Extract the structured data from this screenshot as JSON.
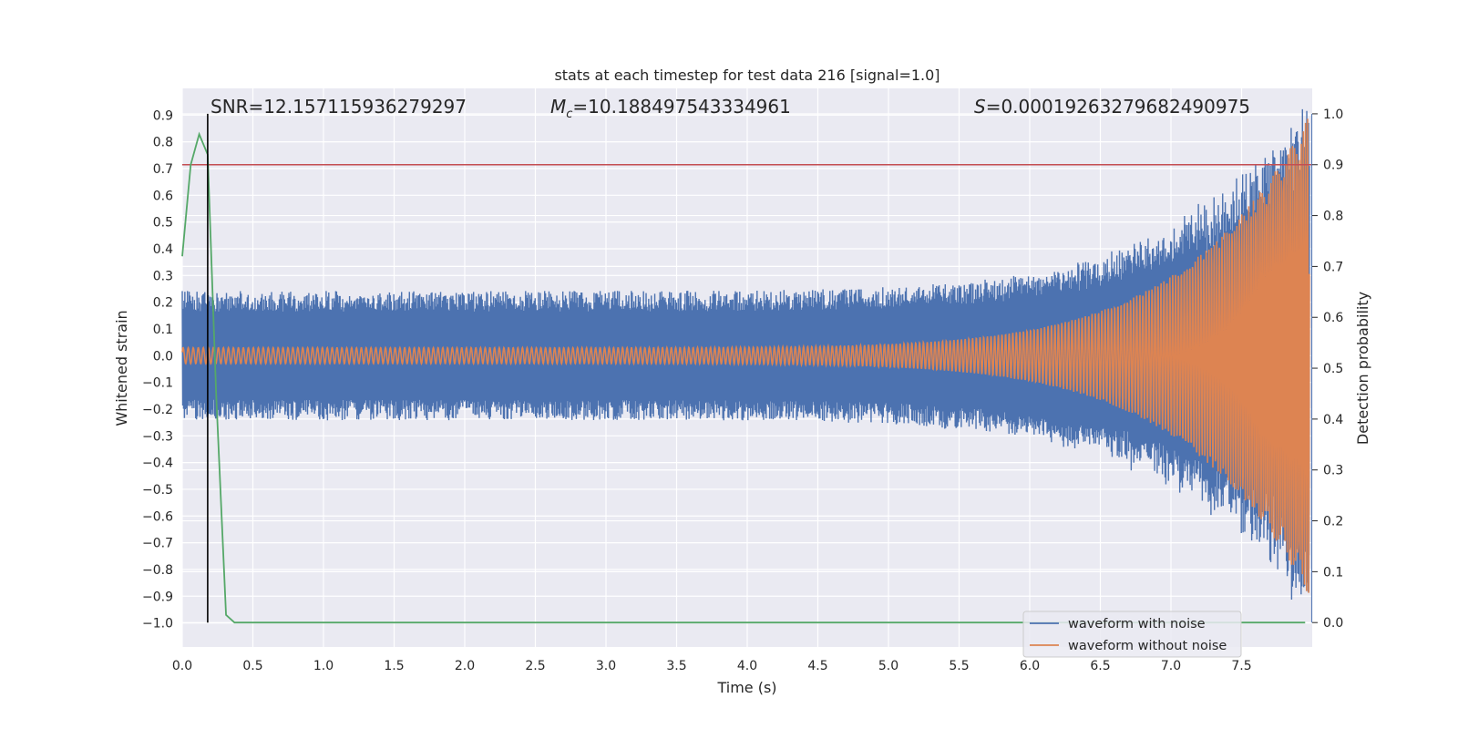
{
  "chart_data": {
    "type": "line",
    "title": "stats at each timestep for test data 216 [signal=1.0]",
    "xlabel": "Time (s)",
    "ylabel": "Whitened strain",
    "y2label": "Detection probability",
    "xlim": [
      0.0,
      8.0
    ],
    "ylim": [
      -1.09,
      1.0
    ],
    "y2lim": [
      -0.048,
      1.05
    ],
    "x_ticks": [
      "0.0",
      "0.5",
      "1.0",
      "1.5",
      "2.0",
      "2.5",
      "3.0",
      "3.5",
      "4.0",
      "4.5",
      "5.0",
      "5.5",
      "6.0",
      "6.5",
      "7.0",
      "7.5"
    ],
    "x_tick_values": [
      0.0,
      0.5,
      1.0,
      1.5,
      2.0,
      2.5,
      3.0,
      3.5,
      4.0,
      4.5,
      5.0,
      5.5,
      6.0,
      6.5,
      7.0,
      7.5
    ],
    "y_ticks": [
      "0.9",
      "0.8",
      "0.7",
      "0.6",
      "0.5",
      "0.4",
      "0.3",
      "0.2",
      "0.1",
      "0.0",
      "−0.1",
      "−0.2",
      "−0.3",
      "−0.4",
      "−0.5",
      "−0.6",
      "−0.7",
      "−0.8",
      "−0.9",
      "−1.0"
    ],
    "y_tick_values": [
      0.9,
      0.8,
      0.7,
      0.6,
      0.5,
      0.4,
      0.3,
      0.2,
      0.1,
      0.0,
      -0.1,
      -0.2,
      -0.3,
      -0.4,
      -0.5,
      -0.6,
      -0.7,
      -0.8,
      -0.9,
      -1.0
    ],
    "y2_ticks": [
      "0.0",
      "0.1",
      "0.2",
      "0.3",
      "0.4",
      "0.5",
      "0.6",
      "0.7",
      "0.8",
      "0.9",
      "1.0"
    ],
    "y2_tick_values": [
      0.0,
      0.1,
      0.2,
      0.3,
      0.4,
      0.5,
      0.6,
      0.7,
      0.8,
      0.9,
      1.0
    ],
    "annotations": {
      "snr": "SNR=12.157115936279297",
      "mc_symbol": "M",
      "mc_sub": "c",
      "mc_value": "=10.188497543334961",
      "s_symbol": "S",
      "s_value": "=0.00019263279682490975"
    },
    "series": [
      {
        "name": "waveform with noise",
        "color": "#4c72b0",
        "description_values": {
          "baseline_amplitude": 0.22,
          "peak_amplitude_at_end": 0.95
        }
      },
      {
        "name": "waveform without noise",
        "color": "#dd8452",
        "description_values": {
          "baseline_amplitude": 0.03,
          "peak_amplitude_at_end": 0.9
        }
      },
      {
        "color": "#55a868",
        "axis": "right",
        "x": [
          0.0,
          0.06,
          0.12,
          0.18,
          0.24,
          0.31,
          0.37,
          7.95
        ],
        "y": [
          0.72,
          0.9,
          0.96,
          0.92,
          0.45,
          0.015,
          0.0,
          0.0
        ]
      }
    ],
    "threshold_line": {
      "axis": "right",
      "value": 0.9,
      "color": "#c44e52"
    },
    "detection_marker": {
      "x": 0.18,
      "color": "#000000"
    },
    "grid": true,
    "legend": {
      "placement": "lower-right",
      "entries": [
        "waveform with noise",
        "waveform without noise"
      ]
    },
    "colors": {
      "axes_bg": "#eaeaf2",
      "grid": "#ffffff",
      "noise": "#4c72b0",
      "clean": "#dd8452",
      "prob": "#55a868",
      "threshold": "#c44e52"
    }
  }
}
